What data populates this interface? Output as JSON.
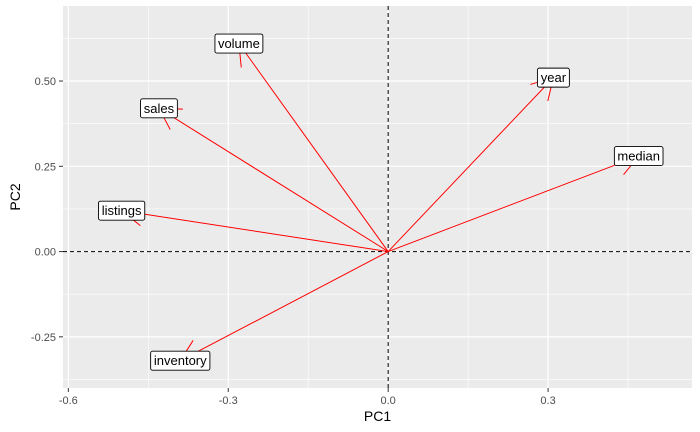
{
  "chart_data": {
    "type": "biplot",
    "xlabel": "PC1",
    "ylabel": "PC2",
    "xlim": [
      -0.61,
      0.57
    ],
    "ylim": [
      -0.4,
      0.72
    ],
    "xticks": [
      -0.6,
      -0.3,
      0.0,
      0.3
    ],
    "xtick_labels": [
      "-0.6",
      "-0.3",
      "0.0",
      "0.3"
    ],
    "yticks": [
      -0.25,
      0.0,
      0.25,
      0.5
    ],
    "ytick_labels": [
      "-0.25",
      "0.00",
      "0.25",
      "0.50"
    ],
    "arrow_color": "#ff0000",
    "panel_bg": "#ebebeb",
    "grid_color": "#ffffff",
    "reference_lines": {
      "x": 0,
      "y": 0,
      "style": "dashed"
    },
    "vectors": [
      {
        "label": "volume",
        "x": -0.28,
        "y": 0.61
      },
      {
        "label": "year",
        "x": 0.31,
        "y": 0.51
      },
      {
        "label": "sales",
        "x": -0.43,
        "y": 0.42
      },
      {
        "label": "median",
        "x": 0.47,
        "y": 0.28
      },
      {
        "label": "listings",
        "x": -0.5,
        "y": 0.12
      },
      {
        "label": "inventory",
        "x": -0.39,
        "y": -0.32
      }
    ]
  }
}
